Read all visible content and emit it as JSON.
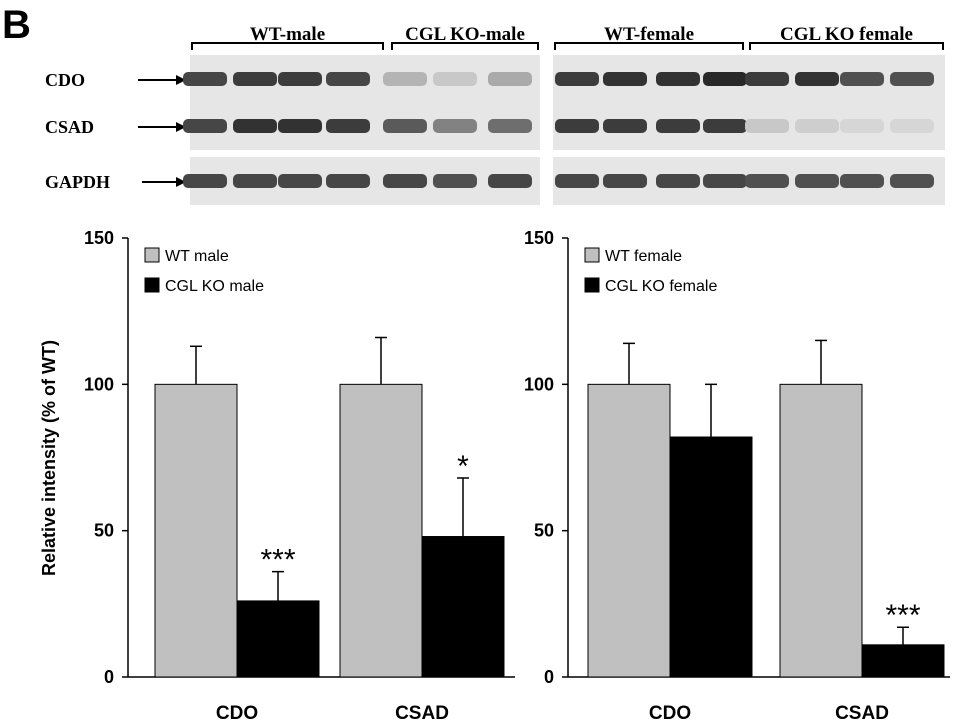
{
  "panel_label": "B",
  "western_blot": {
    "groups": [
      "WT-male",
      "CGL KO-male",
      "WT-female",
      "CGL KO female"
    ],
    "proteins": [
      "CDO",
      "CSAD",
      "GAPDH"
    ],
    "band_intensity": {
      "CDO": [
        0.8,
        0.85,
        0.85,
        0.8,
        0.25,
        0.15,
        0.3,
        0.85,
        0.9,
        0.9,
        0.95,
        0.85,
        0.9,
        0.75,
        0.75
      ],
      "CSAD": [
        0.8,
        0.9,
        0.9,
        0.85,
        0.7,
        0.5,
        0.6,
        0.85,
        0.85,
        0.85,
        0.85,
        0.15,
        0.12,
        0.08,
        0.08
      ],
      "GAPDH": [
        0.8,
        0.8,
        0.8,
        0.8,
        0.8,
        0.75,
        0.8,
        0.8,
        0.8,
        0.8,
        0.8,
        0.75,
        0.75,
        0.75,
        0.75
      ]
    }
  },
  "chart_data": [
    {
      "type": "bar",
      "categories": [
        "CDO",
        "CSAD"
      ],
      "ylabel": "Relative intensity (% of WT)",
      "ylim": [
        0,
        150
      ],
      "yticks": [
        0,
        50,
        100,
        150
      ],
      "legend_position": "top-left",
      "series": [
        {
          "name": "WT male",
          "values": [
            100,
            100
          ],
          "errors": [
            13,
            16
          ],
          "color": "#c0c0c0"
        },
        {
          "name": "CGL KO male",
          "values": [
            26,
            48
          ],
          "errors": [
            10,
            20
          ],
          "color": "#000000"
        }
      ],
      "annotations": [
        {
          "category": "CDO",
          "series": "CGL KO male",
          "text": "***"
        },
        {
          "category": "CSAD",
          "series": "CGL KO male",
          "text": "*"
        }
      ]
    },
    {
      "type": "bar",
      "categories": [
        "CDO",
        "CSAD"
      ],
      "ylabel": "",
      "ylim": [
        0,
        150
      ],
      "yticks": [
        0,
        50,
        100,
        150
      ],
      "legend_position": "top-left",
      "series": [
        {
          "name": "WT female",
          "values": [
            100,
            100
          ],
          "errors": [
            14,
            15
          ],
          "color": "#c0c0c0"
        },
        {
          "name": "CGL KO female",
          "values": [
            82,
            11
          ],
          "errors": [
            18,
            6
          ],
          "color": "#000000"
        }
      ],
      "annotations": [
        {
          "category": "CSAD",
          "series": "CGL KO female",
          "text": "***"
        }
      ]
    }
  ]
}
